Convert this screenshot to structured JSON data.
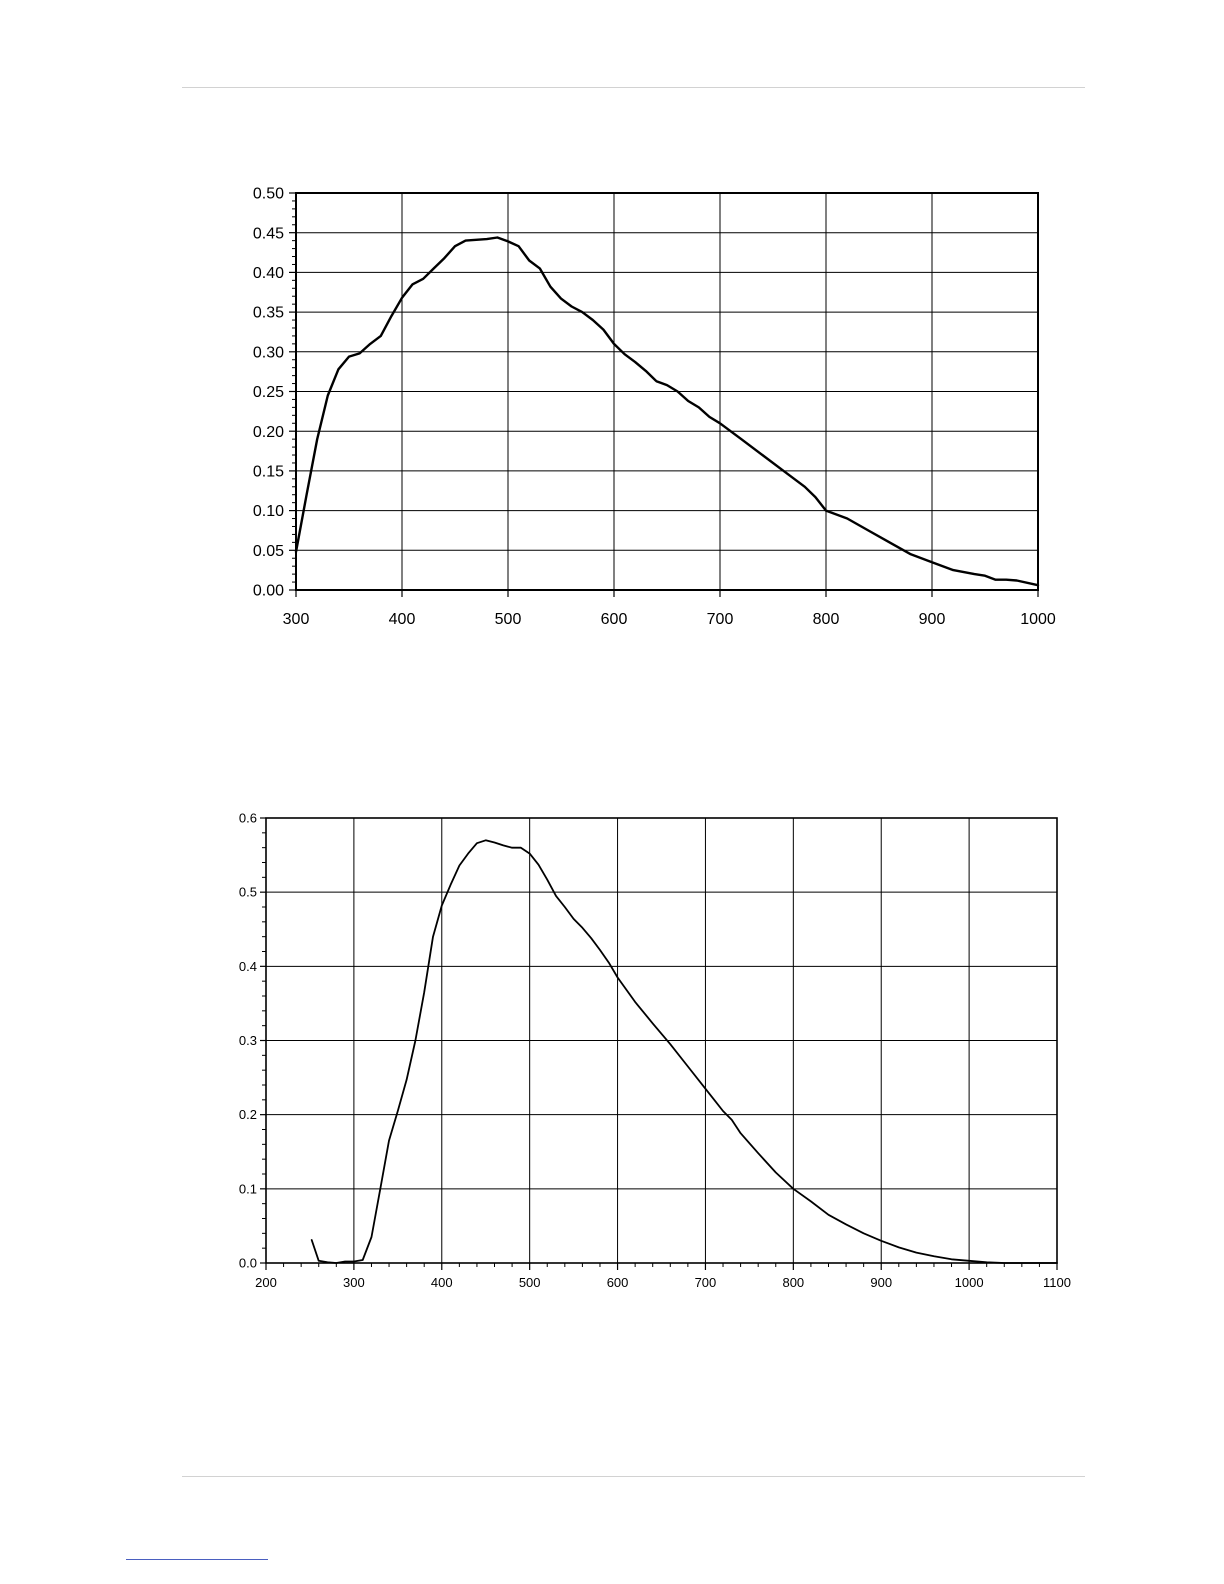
{
  "colors": {
    "line": "#000000",
    "grid": "#000000",
    "page_rule": "#d2d2d2",
    "footnote_rule": "#4a5fc0"
  },
  "chart_data": [
    {
      "type": "line",
      "title": "",
      "xlabel": "",
      "ylabel": "",
      "xlim": [
        300,
        1000
      ],
      "ylim": [
        0,
        0.5
      ],
      "grid": true,
      "legend": "none",
      "x_ticks": [
        "300",
        "400",
        "500",
        "600",
        "700",
        "800",
        "900",
        "1000"
      ],
      "y_ticks": [
        "0.00",
        "0.05",
        "0.10",
        "0.15",
        "0.20",
        "0.25",
        "0.30",
        "0.35",
        "0.40",
        "0.45",
        "0.50"
      ],
      "series": [
        {
          "x": [
            300,
            310,
            320,
            330,
            340,
            350,
            360,
            370,
            380,
            390,
            400,
            410,
            420,
            430,
            440,
            450,
            460,
            470,
            480,
            490,
            500,
            510,
            520,
            530,
            540,
            550,
            560,
            570,
            580,
            590,
            600,
            610,
            620,
            630,
            640,
            650,
            660,
            670,
            680,
            690,
            700,
            720,
            740,
            760,
            780,
            790,
            800,
            820,
            840,
            860,
            880,
            900,
            920,
            940,
            950,
            960,
            970,
            980,
            1000
          ],
          "y": [
            0.048,
            0.12,
            0.19,
            0.245,
            0.278,
            0.294,
            0.298,
            0.31,
            0.32,
            0.345,
            0.368,
            0.385,
            0.392,
            0.405,
            0.418,
            0.433,
            0.44,
            0.441,
            0.442,
            0.444,
            0.439,
            0.433,
            0.415,
            0.405,
            0.382,
            0.367,
            0.357,
            0.35,
            0.34,
            0.328,
            0.31,
            0.297,
            0.287,
            0.276,
            0.263,
            0.258,
            0.25,
            0.238,
            0.23,
            0.218,
            0.21,
            0.19,
            0.17,
            0.15,
            0.13,
            0.117,
            0.1,
            0.09,
            0.075,
            0.06,
            0.045,
            0.035,
            0.025,
            0.02,
            0.018,
            0.013,
            0.013,
            0.012,
            0.006
          ]
        }
      ]
    },
    {
      "type": "line",
      "title": "",
      "xlabel": "",
      "ylabel": "",
      "xlim": [
        200,
        1100
      ],
      "ylim": [
        0,
        0.6
      ],
      "grid": true,
      "legend": "none",
      "x_ticks": [
        "200",
        "300",
        "400",
        "500",
        "600",
        "700",
        "800",
        "900",
        "1000",
        "1100"
      ],
      "y_ticks": [
        "0.0",
        "0.1",
        "0.2",
        "0.3",
        "0.4",
        "0.5",
        "0.6"
      ],
      "series": [
        {
          "x": [
            252,
            260,
            270,
            280,
            290,
            300,
            310,
            320,
            330,
            340,
            350,
            360,
            370,
            380,
            390,
            400,
            410,
            420,
            430,
            440,
            450,
            460,
            470,
            480,
            490,
            500,
            510,
            520,
            530,
            540,
            550,
            560,
            570,
            580,
            590,
            600,
            620,
            640,
            660,
            680,
            700,
            710,
            720,
            730,
            740,
            760,
            780,
            800,
            820,
            840,
            860,
            880,
            900,
            920,
            940,
            960,
            980,
            1000,
            1020,
            1040,
            1060,
            1080,
            1100
          ],
          "y": [
            0.031,
            0.003,
            0.001,
            0.0,
            0.002,
            0.002,
            0.004,
            0.035,
            0.1,
            0.165,
            0.205,
            0.247,
            0.3,
            0.365,
            0.44,
            0.482,
            0.51,
            0.536,
            0.552,
            0.566,
            0.57,
            0.567,
            0.563,
            0.56,
            0.56,
            0.552,
            0.537,
            0.517,
            0.495,
            0.48,
            0.464,
            0.452,
            0.438,
            0.422,
            0.405,
            0.385,
            0.352,
            0.323,
            0.295,
            0.265,
            0.235,
            0.22,
            0.205,
            0.193,
            0.175,
            0.148,
            0.122,
            0.1,
            0.083,
            0.065,
            0.052,
            0.04,
            0.03,
            0.021,
            0.014,
            0.009,
            0.005,
            0.003,
            0.001,
            0.0,
            0.0,
            0.0,
            0.0
          ]
        }
      ]
    }
  ]
}
